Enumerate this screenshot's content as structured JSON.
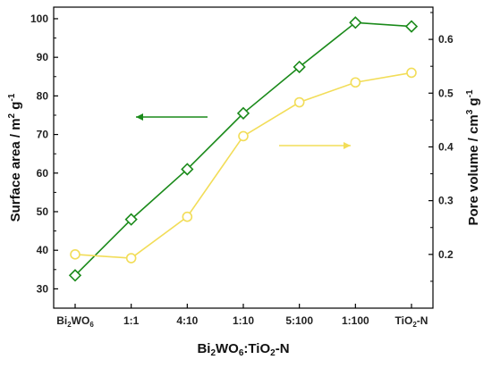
{
  "chart_data": {
    "type": "line",
    "categories": [
      "Bi2WO6",
      "1:1",
      "4:10",
      "1:10",
      "5:100",
      "1:100",
      "TiO2-N"
    ],
    "x_tick_display": [
      [
        {
          "t": "Bi"
        },
        {
          "t": "2",
          "sub": true
        },
        {
          "t": "WO"
        },
        {
          "t": "6",
          "sub": true
        }
      ],
      [
        {
          "t": "1:1"
        }
      ],
      [
        {
          "t": "4:10"
        }
      ],
      [
        {
          "t": "1:10"
        }
      ],
      [
        {
          "t": "5:100"
        }
      ],
      [
        {
          "t": "1:100"
        }
      ],
      [
        {
          "t": "TiO"
        },
        {
          "t": "2",
          "sub": true
        },
        {
          "t": "-N"
        }
      ]
    ],
    "xlabel": [
      {
        "t": "Bi"
      },
      {
        "t": "2",
        "sub": true
      },
      {
        "t": "WO"
      },
      {
        "t": "6",
        "sub": true
      },
      {
        "t": ":TiO"
      },
      {
        "t": "2",
        "sub": true
      },
      {
        "t": "-N"
      }
    ],
    "ylabel_left": [
      {
        "t": "Surface area / m"
      },
      {
        "t": "2",
        "sup": true
      },
      {
        "t": " g"
      },
      {
        "t": "-1",
        "sup": true
      }
    ],
    "ylabel_right": [
      {
        "t": "Pore volume / cm"
      },
      {
        "t": "3",
        "sup": true
      },
      {
        "t": " g"
      },
      {
        "t": "-1",
        "sup": true
      }
    ],
    "ylim_left": [
      25,
      103
    ],
    "yticks_left": [
      30,
      40,
      50,
      60,
      70,
      80,
      90,
      100
    ],
    "ylim_right": [
      0.1,
      0.66
    ],
    "yticks_right": [
      0.2,
      0.3,
      0.4,
      0.5,
      0.6
    ],
    "series": [
      {
        "axis": "left",
        "marker": "diamond",
        "color": "#1a8a1a",
        "values": [
          33.5,
          48,
          61,
          75.5,
          87.5,
          99,
          98
        ]
      },
      {
        "axis": "right",
        "marker": "circle",
        "color": "#f2dd58",
        "values": [
          0.2,
          0.193,
          0.27,
          0.42,
          0.483,
          0.52,
          0.538
        ]
      }
    ],
    "annotations": [
      {
        "type": "arrow",
        "direction": "left",
        "color": "#1a8a1a",
        "points_to": "left-axis"
      },
      {
        "type": "arrow",
        "direction": "right",
        "color": "#f2dd58",
        "points_to": "right-axis"
      }
    ],
    "grid": false
  }
}
